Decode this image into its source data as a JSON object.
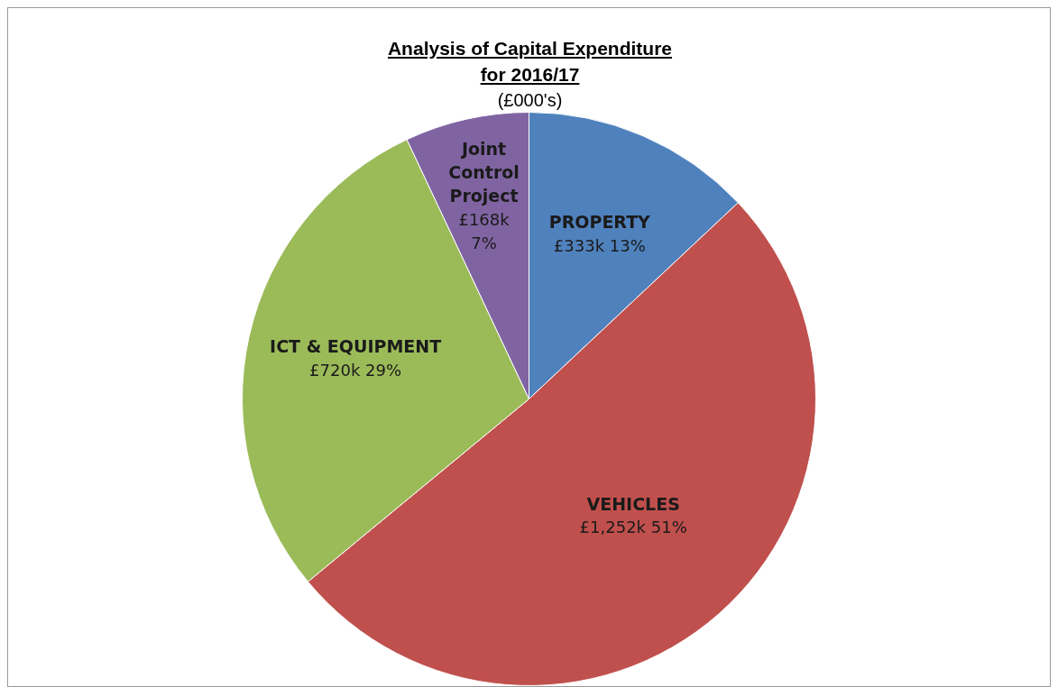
{
  "chart_data": {
    "type": "pie",
    "title": "Analysis of Capital Expenditure\nfor 2016/17",
    "subtitle": "(£000's)",
    "categories": [
      "PROPERTY",
      "VEHICLES",
      "ICT & EQUIPMENT",
      "Joint Control Project"
    ],
    "values": [
      13,
      51,
      29,
      7
    ],
    "colors": [
      "#4f81bd",
      "#c0504d",
      "#9bbb59",
      "#8064a2"
    ],
    "value_labels": [
      "£333k 13%",
      "£1,252k 51%",
      "£720k 29%",
      "£168k 7%"
    ],
    "legend": false
  }
}
